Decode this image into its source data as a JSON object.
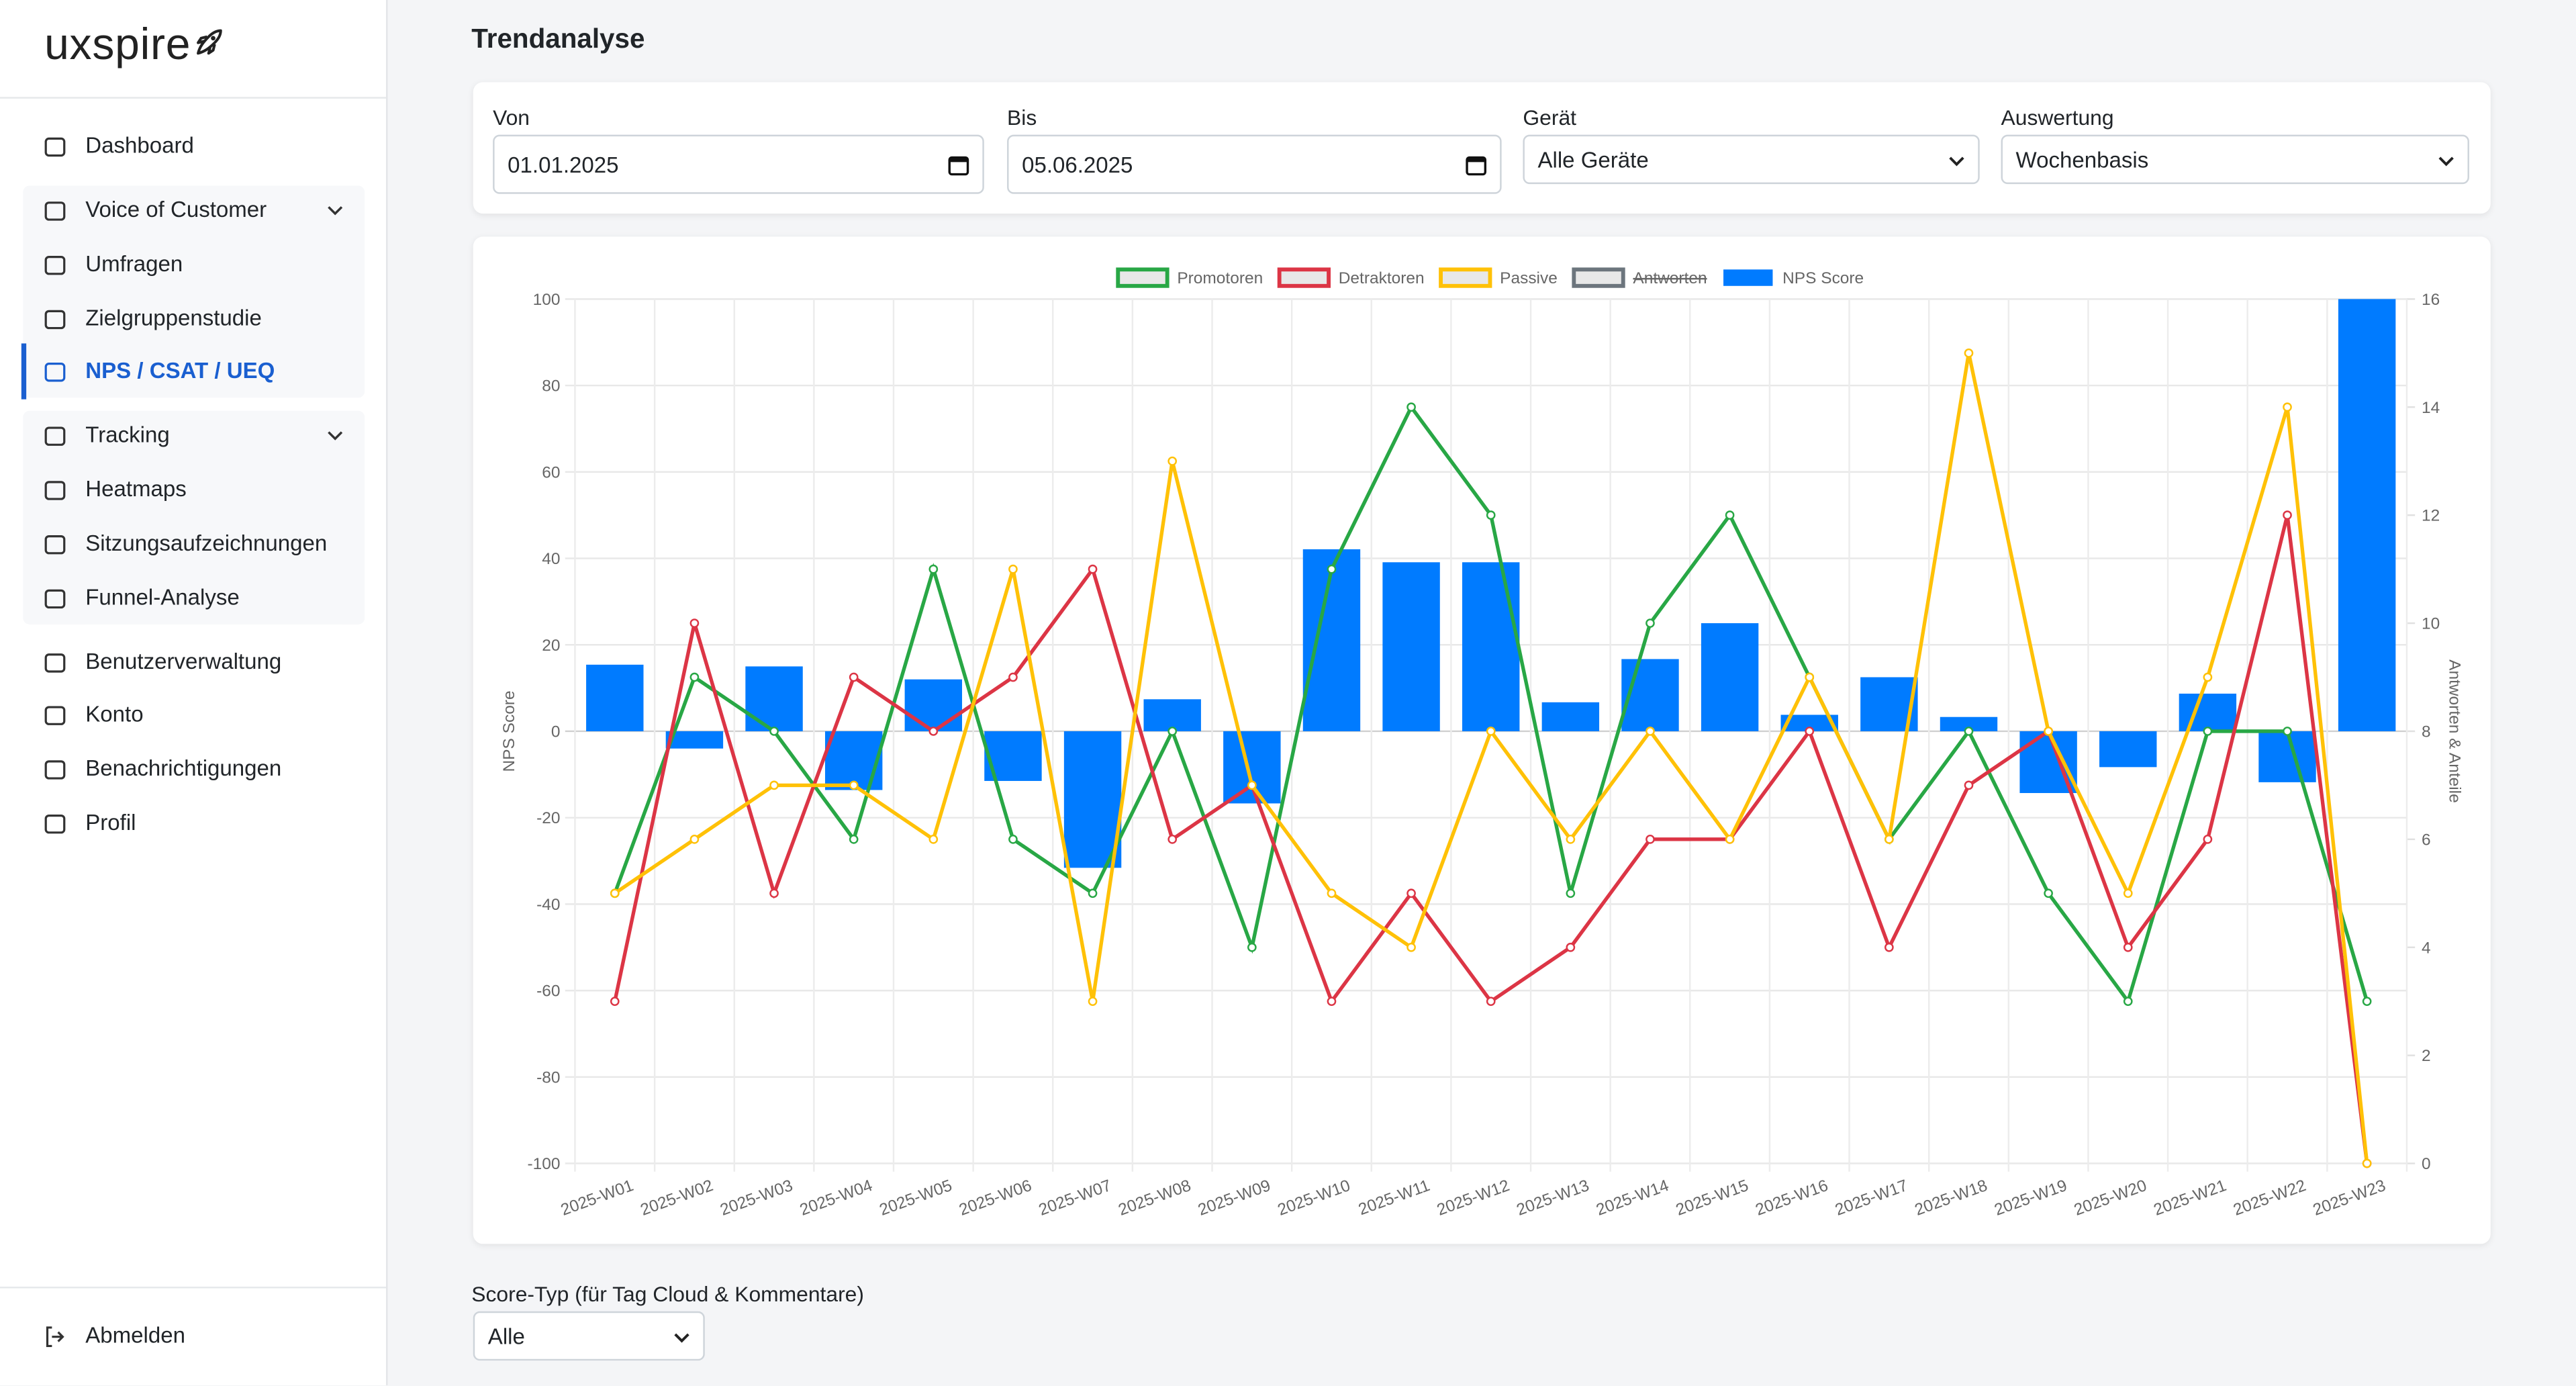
{
  "sidebar": {
    "logo": "uxspire",
    "nav": [
      {
        "label": "Dashboard"
      },
      {
        "label": "Voice of Customer",
        "expandable": true,
        "group": 1
      },
      {
        "label": "Umfragen",
        "group": 1
      },
      {
        "label": "Zielgruppenstudie",
        "group": 1
      },
      {
        "label": "NPS / CSAT / UEQ",
        "group": 1,
        "active": true
      },
      {
        "label": "Tracking",
        "expandable": true,
        "group": 2
      },
      {
        "label": "Heatmaps",
        "group": 2
      },
      {
        "label": "Sitzungsaufzeichnungen",
        "group": 2
      },
      {
        "label": "Funnel-Analyse",
        "group": 2
      },
      {
        "label": "Benutzerverwaltung"
      },
      {
        "label": "Konto"
      },
      {
        "label": "Benachrichtigungen"
      },
      {
        "label": "Profil"
      }
    ],
    "logout": "Abmelden"
  },
  "page": {
    "title": "Trendanalyse"
  },
  "filters": [
    {
      "label": "Von",
      "value": "01.01.2025",
      "kind": "date"
    },
    {
      "label": "Bis",
      "value": "05.06.2025",
      "kind": "date"
    },
    {
      "label": "Gerät",
      "value": "Alle Geräte",
      "kind": "select"
    },
    {
      "label": "Auswertung",
      "value": "Wochenbasis",
      "kind": "select"
    }
  ],
  "score_filter": {
    "label": "Score-Typ (für Tag Cloud & Kommentare)",
    "value": "Alle"
  },
  "chart_data": {
    "type": "combo",
    "categories": [
      "2025-W01",
      "2025-W02",
      "2025-W03",
      "2025-W04",
      "2025-W05",
      "2025-W06",
      "2025-W07",
      "2025-W08",
      "2025-W09",
      "2025-W10",
      "2025-W11",
      "2025-W12",
      "2025-W13",
      "2025-W14",
      "2025-W15",
      "2025-W16",
      "2025-W17",
      "2025-W18",
      "2025-W19",
      "2025-W20",
      "2025-W21",
      "2025-W22",
      "2025-W23"
    ],
    "series": [
      {
        "name": "Promotoren",
        "color": "#28a745",
        "type": "line",
        "axis": "y2",
        "values": [
          5,
          9,
          8,
          6,
          11,
          6,
          5,
          8,
          4,
          11,
          14,
          12,
          5,
          10,
          12,
          9,
          6,
          8,
          5,
          3,
          8,
          8,
          3
        ]
      },
      {
        "name": "Detraktoren",
        "color": "#dc3545",
        "type": "line",
        "axis": "y2",
        "values": [
          3,
          10,
          5,
          9,
          8,
          9,
          11,
          6,
          7,
          3,
          5,
          3,
          4,
          6,
          6,
          8,
          4,
          7,
          8,
          4,
          6,
          12,
          0
        ]
      },
      {
        "name": "Passive",
        "color": "#ffc107",
        "type": "line",
        "axis": "y2",
        "values": [
          5,
          6,
          7,
          7,
          6,
          11,
          3,
          13,
          7,
          5,
          4,
          8,
          6,
          8,
          6,
          9,
          6,
          15,
          8,
          5,
          9,
          14,
          0
        ]
      },
      {
        "name": "Antworten",
        "color": "#6c757d",
        "type": "line",
        "axis": "y2",
        "hidden": true
      },
      {
        "name": "NPS Score",
        "color": "#007bff",
        "type": "bar",
        "values": [
          15.4,
          -4,
          15,
          -13.6,
          12,
          -11.5,
          -31.6,
          7.4,
          -16.7,
          42.1,
          39.1,
          39.1,
          6.7,
          16.7,
          25,
          3.8,
          12.5,
          3.3,
          -14.3,
          -8.3,
          8.7,
          -11.8,
          100
        ]
      }
    ],
    "ylabel": "NPS Score",
    "y2label": "Antworten & Anteile",
    "ylim": [
      -100,
      100
    ],
    "yticks": [
      -100,
      -80,
      -60,
      -40,
      -20,
      0,
      20,
      40,
      60,
      80,
      100
    ],
    "y2lim": [
      0,
      16
    ],
    "y2ticks": [
      0,
      2,
      4,
      6,
      8,
      10,
      12,
      14,
      16
    ],
    "grid": true,
    "legend": "top"
  }
}
